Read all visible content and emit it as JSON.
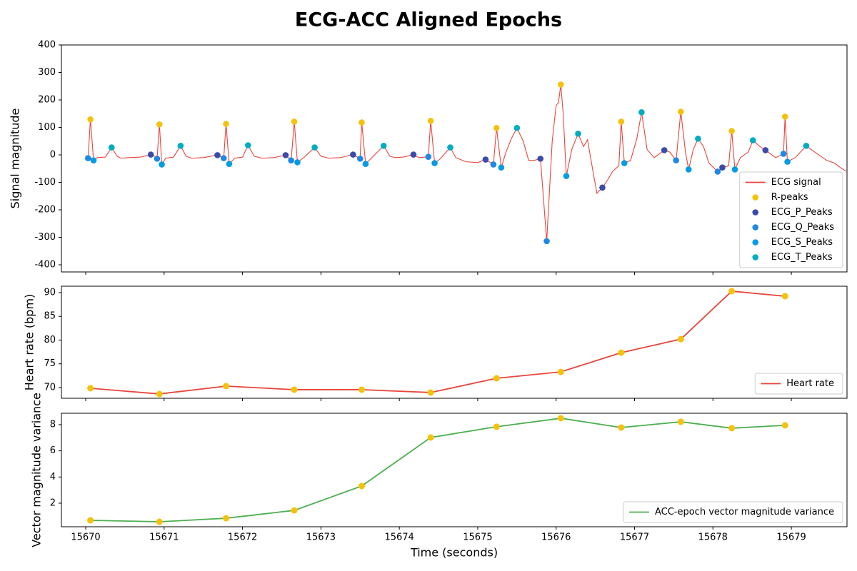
{
  "title": "ECG-ACC Aligned Epochs",
  "chart_data": [
    {
      "type": "line",
      "ylabel": "Signal magnitude",
      "xlim": [
        15669.69,
        15679.71
      ],
      "xticks": [
        15670,
        15671,
        15672,
        15673,
        15674,
        15675,
        15676,
        15677,
        15678,
        15679
      ],
      "xtick_labels": false,
      "ylim": [
        -426,
        400
      ],
      "yticks": [
        -400,
        -300,
        -200,
        -100,
        0,
        100,
        200,
        300,
        400
      ],
      "legend": "lower right",
      "series": [
        {
          "name": "ECG signal",
          "type": "line",
          "color": "#e8453c",
          "x": [
            15670.0,
            15670.03,
            15670.06,
            15670.1,
            15670.15,
            15670.25,
            15670.33,
            15670.4,
            15670.45,
            15670.55,
            15670.7,
            15670.83,
            15670.88,
            15670.91,
            15670.94,
            15670.97,
            15671.02,
            15671.12,
            15671.21,
            15671.28,
            15671.35,
            15671.5,
            15671.68,
            15671.76,
            15671.79,
            15671.83,
            15671.9,
            15672.0,
            15672.07,
            15672.15,
            15672.25,
            15672.4,
            15672.55,
            15672.62,
            15672.66,
            15672.7,
            15672.78,
            15672.92,
            15673.0,
            15673.1,
            15673.25,
            15673.41,
            15673.5,
            15673.52,
            15673.57,
            15673.65,
            15673.8,
            15673.88,
            15673.95,
            15674.05,
            15674.18,
            15674.25,
            15674.37,
            15674.4,
            15674.45,
            15674.52,
            15674.65,
            15674.72,
            15674.85,
            15675.0,
            15675.1,
            15675.2,
            15675.24,
            15675.3,
            15675.36,
            15675.43,
            15675.5,
            15675.58,
            15675.65,
            15675.72,
            15675.8,
            15675.88,
            15675.95,
            15676.0,
            15676.03,
            15676.06,
            15676.09,
            15676.13,
            15676.2,
            15676.28,
            15676.35,
            15676.4,
            15676.47,
            15676.52,
            15676.59,
            15676.66,
            15676.72,
            15676.8,
            15676.83,
            15676.87,
            15676.95,
            15677.03,
            15677.09,
            15677.16,
            15677.25,
            15677.38,
            15677.45,
            15677.53,
            15677.59,
            15677.65,
            15677.69,
            15677.75,
            15677.81,
            15677.88,
            15677.95,
            15678.06,
            15678.12,
            15678.2,
            15678.24,
            15678.28,
            15678.35,
            15678.45,
            15678.51,
            15678.6,
            15678.67,
            15678.8,
            15678.9,
            15678.92,
            15678.95,
            15679.05,
            15679.19,
            15679.3,
            15679.45,
            15679.55,
            15679.62,
            15679.7
          ],
          "values": [
            -2,
            -12,
            129,
            -20,
            -10,
            -8,
            27,
            -5,
            -12,
            -10,
            -8,
            1,
            -5,
            -14,
            111,
            -35,
            -12,
            -8,
            33,
            -5,
            -12,
            -10,
            -1,
            -12,
            113,
            -33,
            -12,
            -8,
            35,
            -5,
            -12,
            -10,
            -1,
            -20,
            121,
            -27,
            -10,
            27,
            -5,
            -12,
            -10,
            1,
            -14,
            118,
            -33,
            -10,
            33,
            -5,
            -10,
            -8,
            1,
            -10,
            -7,
            124,
            -30,
            -15,
            27,
            -10,
            -25,
            -28,
            -17,
            -35,
            98,
            -46,
            10,
            60,
            98,
            50,
            -20,
            -20,
            -14,
            -314,
            50,
            180,
            190,
            256,
            150,
            -77,
            20,
            77,
            30,
            55,
            -60,
            -140,
            -119,
            -90,
            -60,
            -40,
            121,
            -30,
            -20,
            60,
            155,
            20,
            -10,
            17,
            10,
            -20,
            157,
            10,
            -53,
            20,
            59,
            30,
            -30,
            -61,
            -46,
            -40,
            87,
            -53,
            -10,
            10,
            53,
            30,
            17,
            -10,
            4,
            139,
            -25,
            -10,
            33,
            10,
            -20,
            -30,
            -45,
            -60
          ]
        },
        {
          "name": "R-peaks",
          "type": "scatter",
          "color": "#f4c20d",
          "x": [
            15670.06,
            15670.94,
            15671.79,
            15672.66,
            15673.52,
            15674.4,
            15675.24,
            15676.06,
            15676.83,
            15677.59,
            15678.24,
            15678.92
          ],
          "values": [
            129,
            111,
            113,
            121,
            118,
            124,
            98,
            256,
            121,
            157,
            87,
            139
          ]
        },
        {
          "name": "ECG_P_Peaks",
          "type": "scatter",
          "color": "#3a4ba8",
          "x": [
            15670.83,
            15671.68,
            15672.55,
            15673.41,
            15674.18,
            15675.1,
            15675.8,
            15676.59,
            15677.38,
            15678.12,
            15678.67
          ],
          "values": [
            1,
            -1,
            -1,
            1,
            1,
            -17,
            -14,
            -119,
            17,
            -46,
            17
          ]
        },
        {
          "name": "ECG_Q_Peaks",
          "type": "scatter",
          "color": "#1f88e5",
          "x": [
            15670.03,
            15670.91,
            15671.76,
            15672.62,
            15673.5,
            15674.37,
            15675.2,
            15675.88,
            15677.53,
            15678.06,
            15678.9
          ],
          "values": [
            -12,
            -14,
            -12,
            -20,
            -14,
            -7,
            -35,
            -314,
            -20,
            -61,
            4
          ]
        },
        {
          "name": "ECG_S_Peaks",
          "type": "scatter",
          "color": "#039be5",
          "x": [
            15670.1,
            15670.97,
            15671.83,
            15672.7,
            15673.57,
            15674.45,
            15675.3,
            15676.13,
            15676.87,
            15677.69,
            15678.28,
            15678.95
          ],
          "values": [
            -20,
            -35,
            -33,
            -27,
            -33,
            -30,
            -46,
            -77,
            -30,
            -53,
            -53,
            -25
          ]
        },
        {
          "name": "ECG_T_Peaks",
          "type": "scatter",
          "color": "#00acc1",
          "x": [
            15670.33,
            15671.21,
            15672.07,
            15672.92,
            15673.8,
            15674.65,
            15675.5,
            15676.28,
            15677.09,
            15677.81,
            15678.51,
            15679.19
          ],
          "values": [
            27,
            33,
            35,
            27,
            33,
            27,
            98,
            77,
            155,
            59,
            53,
            33
          ]
        }
      ]
    },
    {
      "type": "line",
      "ylabel": "Heart rate (bpm)",
      "xlim": [
        15669.69,
        15679.71
      ],
      "xticks": [
        15670,
        15671,
        15672,
        15673,
        15674,
        15675,
        15676,
        15677,
        15678,
        15679
      ],
      "xtick_labels": false,
      "ylim": [
        67.74,
        91.35
      ],
      "yticks": [
        70,
        75,
        80,
        85,
        90
      ],
      "legend": "lower right",
      "x": [
        15670.06,
        15670.94,
        15671.79,
        15672.66,
        15673.52,
        15674.4,
        15675.24,
        15676.06,
        15676.83,
        15677.59,
        15678.24,
        15678.92
      ],
      "series": [
        {
          "name": "Heart rate",
          "type": "line",
          "color": "#e8453c",
          "marker_color": "#f4c20d",
          "values": [
            69.85,
            68.65,
            70.3,
            69.55,
            69.55,
            68.95,
            71.95,
            73.3,
            77.35,
            80.2,
            90.3,
            89.25
          ]
        }
      ]
    },
    {
      "type": "line",
      "ylabel": "Vector magnitude variance",
      "xlabel": "Time (seconds)",
      "xlim": [
        15669.69,
        15679.71
      ],
      "xticks": [
        15670,
        15671,
        15672,
        15673,
        15674,
        15675,
        15676,
        15677,
        15678,
        15679
      ],
      "xtick_labels": true,
      "ylim": [
        0.2,
        8.87
      ],
      "yticks": [
        2,
        4,
        6,
        8
      ],
      "legend": "lower right",
      "x": [
        15670.06,
        15670.94,
        15671.79,
        15672.66,
        15673.52,
        15674.4,
        15675.24,
        15676.06,
        15676.83,
        15677.59,
        15678.24,
        15678.92
      ],
      "series": [
        {
          "name": "ACC-epoch vector magnitude variance",
          "type": "line",
          "color": "#4caf50",
          "marker_color": "#f4c20d",
          "values": [
            0.69,
            0.58,
            0.85,
            1.45,
            3.31,
            7.02,
            7.84,
            8.49,
            7.78,
            8.22,
            7.73,
            7.95
          ]
        }
      ]
    }
  ]
}
